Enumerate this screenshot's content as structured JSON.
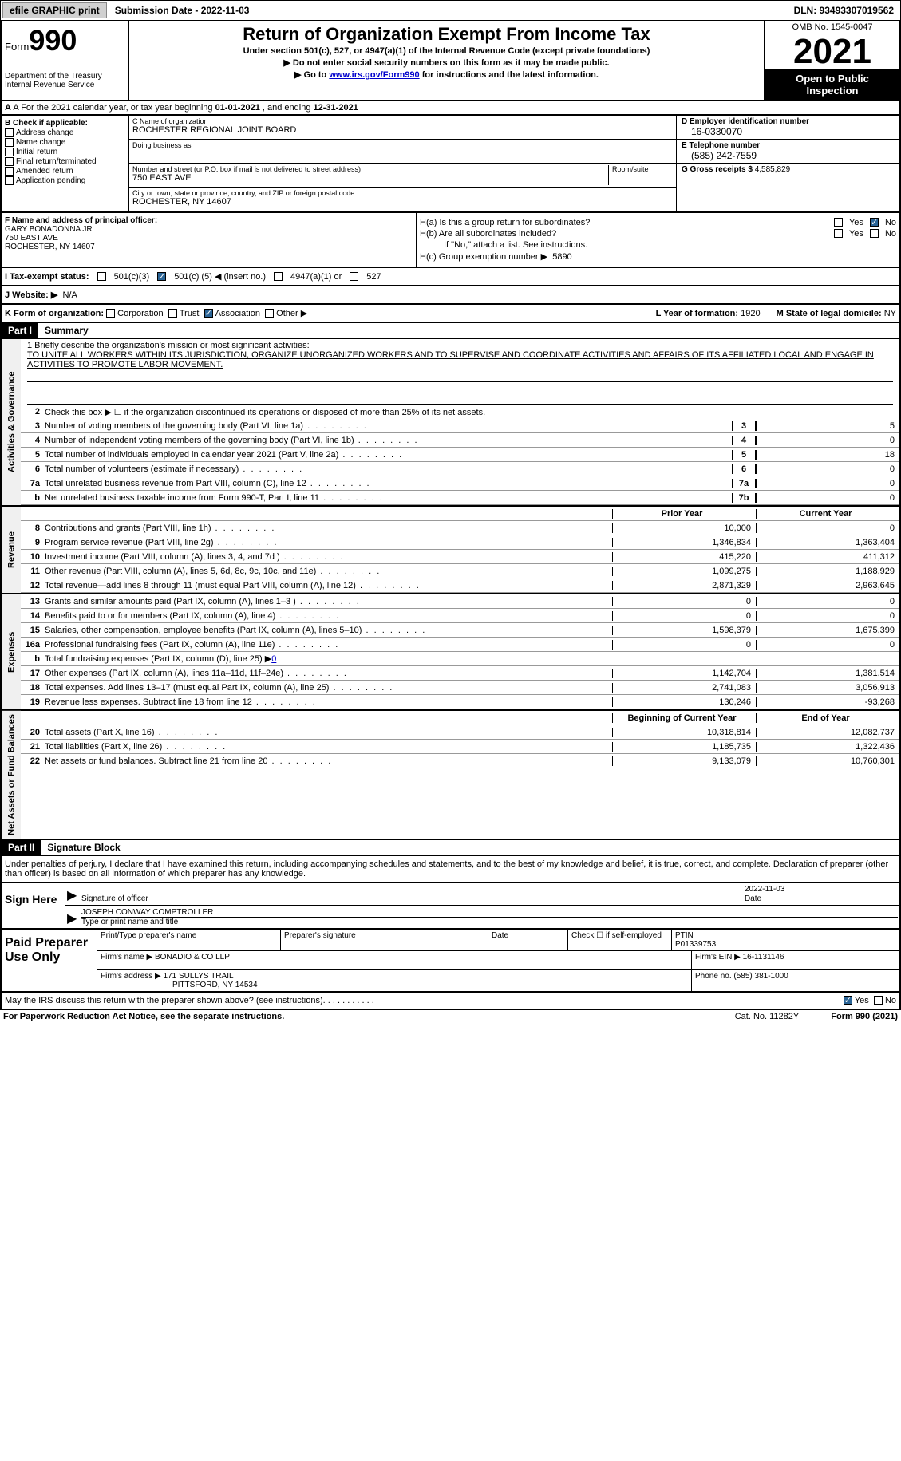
{
  "top_bar": {
    "efile_label": "efile GRAPHIC print",
    "submission_label": "Submission Date - 2022-11-03",
    "dln_label": "DLN: 93493307019562"
  },
  "header": {
    "form_prefix": "Form",
    "form_number": "990",
    "dept": "Department of the Treasury\nInternal Revenue Service",
    "title": "Return of Organization Exempt From Income Tax",
    "subtitle": "Under section 501(c), 527, or 4947(a)(1) of the Internal Revenue Code (except private foundations)",
    "line2": "▶ Do not enter social security numbers on this form as it may be made public.",
    "line3_pre": "▶ Go to ",
    "line3_link": "www.irs.gov/Form990",
    "line3_post": " for instructions and the latest information.",
    "omb": "OMB No. 1545-0047",
    "year": "2021",
    "open_insp": "Open to Public Inspection"
  },
  "row_a": {
    "text_pre": "A For the 2021 calendar year, or tax year beginning ",
    "begin": "01-01-2021",
    "mid": " , and ending ",
    "end": "12-31-2021"
  },
  "col_b": {
    "header": "B Check if applicable:",
    "items": [
      "Address change",
      "Name change",
      "Initial return",
      "Final return/terminated",
      "Amended return",
      "Application pending"
    ]
  },
  "col_c": {
    "name_label": "C Name of organization",
    "name": "ROCHESTER REGIONAL JOINT BOARD",
    "dba_label": "Doing business as",
    "dba": "",
    "addr_label": "Number and street (or P.O. box if mail is not delivered to street address)",
    "room_label": "Room/suite",
    "addr": "750 EAST AVE",
    "city_label": "City or town, state or province, country, and ZIP or foreign postal code",
    "city": "ROCHESTER, NY  14607"
  },
  "col_d": {
    "ein_label": "D Employer identification number",
    "ein": "16-0330070",
    "phone_label": "E Telephone number",
    "phone": "(585) 242-7559",
    "gross_label": "G Gross receipts $",
    "gross": "4,585,829"
  },
  "col_f": {
    "label": "F Name and address of principal officer:",
    "name": "GARY BONADONNA JR",
    "addr1": "750 EAST AVE",
    "addr2": "ROCHESTER, NY  14607"
  },
  "col_h": {
    "ha_label": "H(a)  Is this a group return for subordinates?",
    "hb_label": "H(b)  Are all subordinates included?",
    "hb_note": "If \"No,\" attach a list. See instructions.",
    "hc_label": "H(c)  Group exemption number ▶",
    "hc_val": "5890",
    "yes": "Yes",
    "no": "No"
  },
  "row_i": {
    "label": "I  Tax-exempt status:",
    "opt1": "501(c)(3)",
    "opt2_pre": "501(c) (",
    "opt2_val": "5",
    "opt2_post": ") ◀ (insert no.)",
    "opt3": "4947(a)(1) or",
    "opt4": "527"
  },
  "row_j": {
    "label": "J  Website: ▶",
    "val": "N/A"
  },
  "row_k": {
    "label": "K Form of organization:",
    "opts": [
      "Corporation",
      "Trust",
      "Association",
      "Other ▶"
    ],
    "checked_idx": 2,
    "l_label": "L Year of formation:",
    "l_val": "1920",
    "m_label": "M State of legal domicile:",
    "m_val": "NY"
  },
  "part1": {
    "tag": "Part I",
    "title": "Summary"
  },
  "mission": {
    "label": "1   Briefly describe the organization's mission or most significant activities:",
    "text": "TO UNITE ALL WORKERS WITHIN ITS JURISDICTION, ORGANIZE UNORGANIZED WORKERS AND TO SUPERVISE AND COORDINATE ACTIVITIES AND AFFAIRS OF ITS AFFILIATED LOCAL AND ENGAGE IN ACTIVITIES TO PROMOTE LABOR MOVEMENT."
  },
  "line2": "Check this box ▶ ☐ if the organization discontinued its operations or disposed of more than 25% of its net assets.",
  "governance_rows": [
    {
      "num": "3",
      "label": "Number of voting members of the governing body (Part VI, line 1a)",
      "box": "3",
      "val": "5"
    },
    {
      "num": "4",
      "label": "Number of independent voting members of the governing body (Part VI, line 1b)",
      "box": "4",
      "val": "0"
    },
    {
      "num": "5",
      "label": "Total number of individuals employed in calendar year 2021 (Part V, line 2a)",
      "box": "5",
      "val": "18"
    },
    {
      "num": "6",
      "label": "Total number of volunteers (estimate if necessary)",
      "box": "6",
      "val": "0"
    },
    {
      "num": "7a",
      "label": "Total unrelated business revenue from Part VIII, column (C), line 12",
      "box": "7a",
      "val": "0"
    },
    {
      "num": "b",
      "label": "Net unrelated business taxable income from Form 990-T, Part I, line 11",
      "box": "7b",
      "val": "0"
    }
  ],
  "col_headers": {
    "prior": "Prior Year",
    "current": "Current Year",
    "begin": "Beginning of Current Year",
    "end": "End of Year"
  },
  "revenue_rows": [
    {
      "num": "8",
      "label": "Contributions and grants (Part VIII, line 1h)",
      "prior": "10,000",
      "curr": "0"
    },
    {
      "num": "9",
      "label": "Program service revenue (Part VIII, line 2g)",
      "prior": "1,346,834",
      "curr": "1,363,404"
    },
    {
      "num": "10",
      "label": "Investment income (Part VIII, column (A), lines 3, 4, and 7d )",
      "prior": "415,220",
      "curr": "411,312"
    },
    {
      "num": "11",
      "label": "Other revenue (Part VIII, column (A), lines 5, 6d, 8c, 9c, 10c, and 11e)",
      "prior": "1,099,275",
      "curr": "1,188,929"
    },
    {
      "num": "12",
      "label": "Total revenue—add lines 8 through 11 (must equal Part VIII, column (A), line 12)",
      "prior": "2,871,329",
      "curr": "2,963,645"
    }
  ],
  "expense_rows": [
    {
      "num": "13",
      "label": "Grants and similar amounts paid (Part IX, column (A), lines 1–3 )",
      "prior": "0",
      "curr": "0"
    },
    {
      "num": "14",
      "label": "Benefits paid to or for members (Part IX, column (A), line 4)",
      "prior": "0",
      "curr": "0"
    },
    {
      "num": "15",
      "label": "Salaries, other compensation, employee benefits (Part IX, column (A), lines 5–10)",
      "prior": "1,598,379",
      "curr": "1,675,399"
    },
    {
      "num": "16a",
      "label": "Professional fundraising fees (Part IX, column (A), line 11e)",
      "prior": "0",
      "curr": "0"
    },
    {
      "num": "b",
      "label": "Total fundraising expenses (Part IX, column (D), line 25) ▶",
      "fund_val": "0",
      "shade": true
    },
    {
      "num": "17",
      "label": "Other expenses (Part IX, column (A), lines 11a–11d, 11f–24e)",
      "prior": "1,142,704",
      "curr": "1,381,514"
    },
    {
      "num": "18",
      "label": "Total expenses. Add lines 13–17 (must equal Part IX, column (A), line 25)",
      "prior": "2,741,083",
      "curr": "3,056,913"
    },
    {
      "num": "19",
      "label": "Revenue less expenses. Subtract line 18 from line 12",
      "prior": "130,246",
      "curr": "-93,268"
    }
  ],
  "netassets_rows": [
    {
      "num": "20",
      "label": "Total assets (Part X, line 16)",
      "prior": "10,318,814",
      "curr": "12,082,737"
    },
    {
      "num": "21",
      "label": "Total liabilities (Part X, line 26)",
      "prior": "1,185,735",
      "curr": "1,322,436"
    },
    {
      "num": "22",
      "label": "Net assets or fund balances. Subtract line 21 from line 20",
      "prior": "9,133,079",
      "curr": "10,760,301"
    }
  ],
  "part2": {
    "tag": "Part II",
    "title": "Signature Block"
  },
  "sig_intro": "Under penalties of perjury, I declare that I have examined this return, including accompanying schedules and statements, and to the best of my knowledge and belief, it is true, correct, and complete. Declaration of preparer (other than officer) is based on all information of which preparer has any knowledge.",
  "sign_here": {
    "label": "Sign Here",
    "sig_label": "Signature of officer",
    "date_val": "2022-11-03",
    "date_label": "Date",
    "name_val": "JOSEPH CONWAY COMPTROLLER",
    "name_label": "Type or print name and title"
  },
  "paid": {
    "label": "Paid Preparer Use Only",
    "h1": "Print/Type preparer's name",
    "h2": "Preparer's signature",
    "h3": "Date",
    "h4_pre": "Check ☐ if self-employed",
    "ptin_label": "PTIN",
    "ptin": "P01339753",
    "firm_name_label": "Firm's name    ▶",
    "firm_name": "BONADIO & CO LLP",
    "firm_ein_label": "Firm's EIN ▶",
    "firm_ein": "16-1131146",
    "firm_addr_label": "Firm's address ▶",
    "firm_addr1": "171 SULLYS TRAIL",
    "firm_addr2": "PITTSFORD, NY  14534",
    "phone_label": "Phone no.",
    "phone": "(585) 381-1000"
  },
  "discuss": {
    "text": "May the IRS discuss this return with the preparer shown above? (see instructions)",
    "yes": "Yes",
    "no": "No"
  },
  "footer": {
    "left": "For Paperwork Reduction Act Notice, see the separate instructions.",
    "cat": "Cat. No. 11282Y",
    "right": "Form 990 (2021)"
  },
  "vtabs": {
    "gov": "Activities & Governance",
    "rev": "Revenue",
    "exp": "Expenses",
    "net": "Net Assets or Fund Balances"
  }
}
